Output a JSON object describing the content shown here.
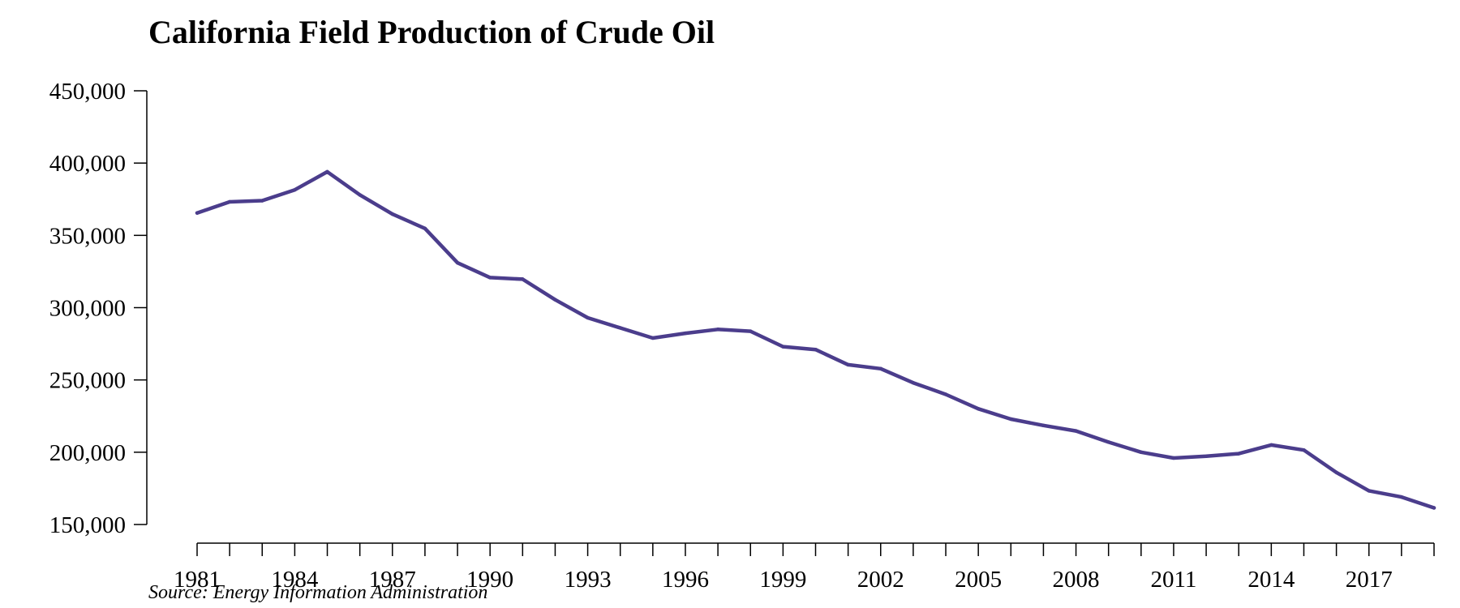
{
  "chart_data": {
    "type": "line",
    "title": "California Field Production of Crude Oil",
    "xlabel": "",
    "ylabel": "",
    "source": "Source: Energy Information Administration",
    "ylim": [
      150000,
      450000
    ],
    "xlim": [
      1981,
      2019
    ],
    "grid": false,
    "line_color": "#4B3D8C",
    "y_ticks": [
      150000,
      200000,
      250000,
      300000,
      350000,
      400000,
      450000
    ],
    "y_tick_labels": [
      "150,000",
      "200,000",
      "250,000",
      "300,000",
      "350,000",
      "400,000",
      "450,000"
    ],
    "x_ticks_labeled": [
      1981,
      1984,
      1987,
      1990,
      1993,
      1996,
      1999,
      2002,
      2005,
      2008,
      2011,
      2014,
      2017
    ],
    "x_tick_labels": [
      "1981",
      "1984",
      "1987",
      "1990",
      "1993",
      "1996",
      "1999",
      "2002",
      "2005",
      "2008",
      "2011",
      "2014",
      "2017"
    ],
    "x": [
      1981,
      1982,
      1983,
      1984,
      1985,
      1986,
      1987,
      1988,
      1989,
      1990,
      1991,
      1992,
      1993,
      1994,
      1995,
      1996,
      1997,
      1998,
      1999,
      2000,
      2001,
      2002,
      2003,
      2004,
      2005,
      2006,
      2007,
      2008,
      2009,
      2010,
      2011,
      2012,
      2013,
      2014,
      2015,
      2016,
      2017,
      2018,
      2019
    ],
    "series": [
      {
        "values": [
          365500,
          373200,
          374000,
          381500,
          394000,
          378000,
          364700,
          354800,
          331000,
          320800,
          319700,
          305500,
          293000,
          286000,
          279000,
          282300,
          285000,
          283700,
          273000,
          271000,
          260500,
          257800,
          248000,
          240000,
          230000,
          222900,
          218500,
          214700,
          207000,
          200000,
          196000,
          197200,
          199000,
          205000,
          201500,
          186000,
          173300,
          169000,
          161500
        ]
      }
    ]
  }
}
